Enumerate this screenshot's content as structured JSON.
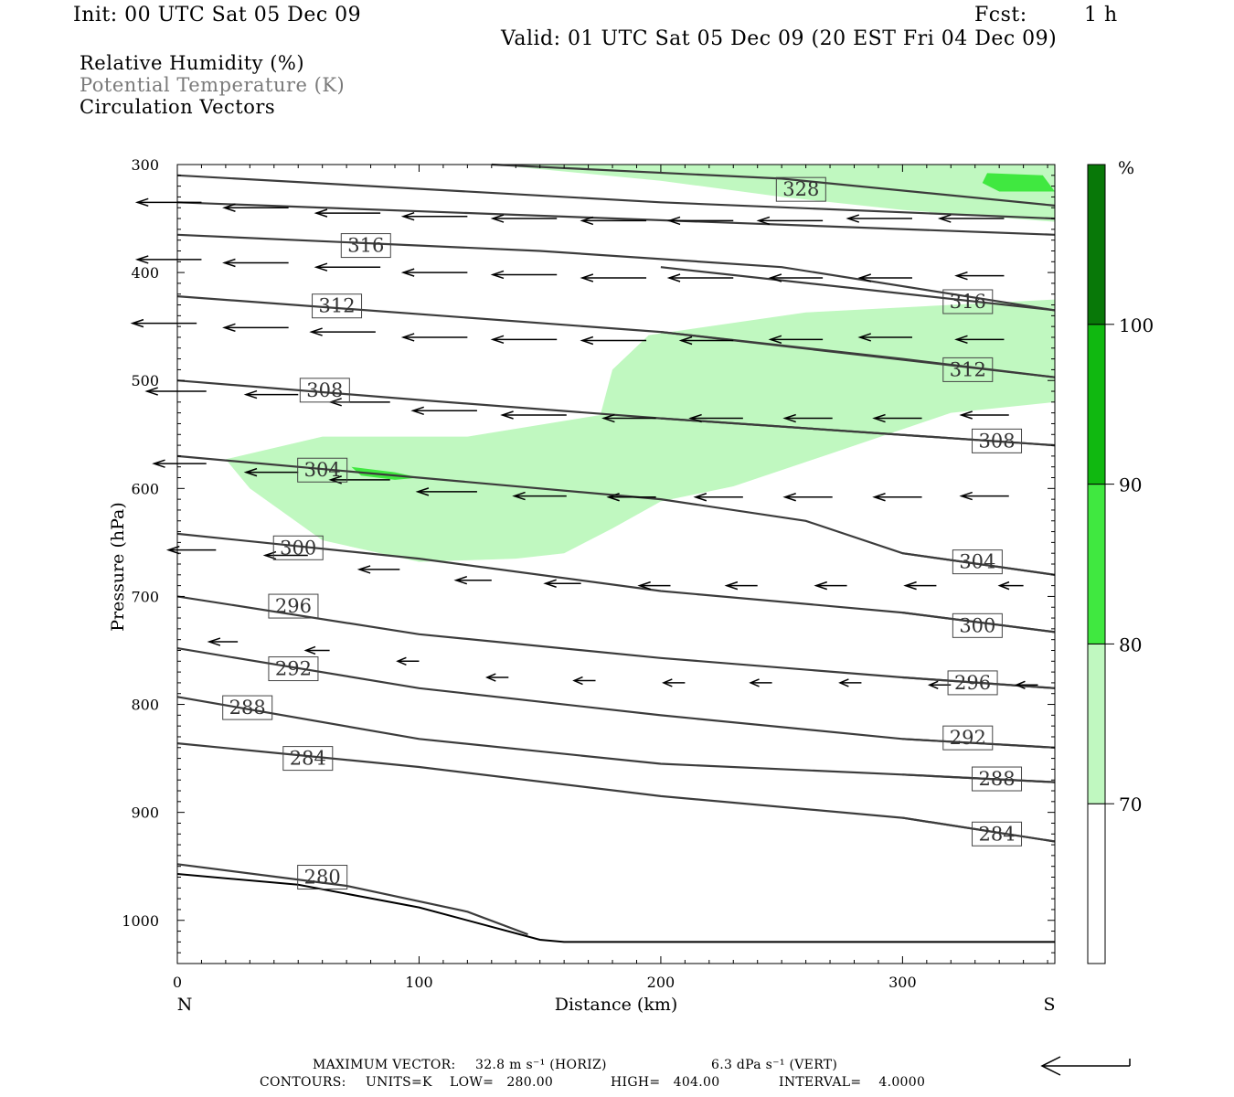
{
  "header": {
    "init": "Init: 00 UTC Sat 05 Dec 09",
    "fcst_label": "Fcst:",
    "fcst_value": "1 h",
    "valid": "Valid: 01 UTC Sat 05 Dec 09 (20 EST Fri 04 Dec 09)"
  },
  "titles": {
    "line1": "Relative Humidity (%)",
    "line2": "Potential Temperature (K)",
    "line3": "Circulation Vectors"
  },
  "footer": {
    "max_vector_label": "MAXIMUM VECTOR:",
    "max_vector_horiz": "32.8 m s⁻¹ (HORIZ)",
    "max_vector_vert": "6.3 dPa s⁻¹ (VERT)",
    "contours_label": "CONTOURS:",
    "units": "UNITS=K",
    "low": "LOW=   280.00",
    "high": "HIGH=   404.00",
    "interval": "INTERVAL=    4.0000"
  },
  "colors": {
    "rh_70_80": "#c0f8c0",
    "rh_80_90": "#40e840",
    "rh_90_100": "#10b810",
    "rh_100": "#087808",
    "theta_line": "#3c3c3c",
    "axis": "#000000"
  },
  "chart_data": {
    "type": "contour",
    "xlabel": "Distance (km)",
    "ylabel": "Pressure (hPa)",
    "xlim": [
      0,
      363
    ],
    "ylim": [
      1040,
      300
    ],
    "x_ticks": [
      "0",
      "100",
      "200",
      "300"
    ],
    "x_tick_values": [
      0,
      100,
      200,
      300
    ],
    "y_ticks": [
      "300",
      "400",
      "500",
      "600",
      "700",
      "800",
      "900",
      "1000"
    ],
    "y_tick_values": [
      300,
      400,
      500,
      600,
      700,
      800,
      900,
      1000
    ],
    "x_end_labels": {
      "left": "N",
      "right": "S"
    },
    "colorbar": {
      "unit": "%",
      "levels": [
        "70",
        "80",
        "90",
        "100"
      ],
      "level_values": [
        70,
        80,
        90,
        100
      ]
    },
    "theta_contours": [
      {
        "label": "328",
        "points": [
          [
            130,
            300
          ],
          [
            250,
            313
          ],
          [
            363,
            338
          ]
        ],
        "label_at": [
          258,
          323
        ]
      },
      {
        "label": "",
        "points": [
          [
            0,
            310
          ],
          [
            200,
            335
          ],
          [
            363,
            350
          ]
        ],
        "label_at": null
      },
      {
        "label": "316",
        "points": [
          [
            0,
            365
          ],
          [
            150,
            380
          ],
          [
            250,
            395
          ],
          [
            363,
            435
          ]
        ],
        "label_at": [
          78,
          375
        ]
      },
      {
        "label": "316",
        "points": [
          [
            200,
            395
          ],
          [
            363,
            435
          ]
        ],
        "label_at": [
          327,
          427
        ]
      },
      {
        "label": "",
        "points": [
          [
            0,
            335
          ],
          [
            363,
            365
          ]
        ],
        "label_at": null
      },
      {
        "label": "312",
        "points": [
          [
            0,
            422
          ],
          [
            200,
            455
          ],
          [
            300,
            480
          ],
          [
            363,
            497
          ]
        ],
        "label_at": [
          66,
          431
        ]
      },
      {
        "label": "312",
        "points": [
          [
            200,
            455
          ],
          [
            363,
            497
          ]
        ],
        "label_at": [
          327,
          490
        ]
      },
      {
        "label": "308",
        "points": [
          [
            0,
            500
          ],
          [
            100,
            518
          ],
          [
            200,
            535
          ],
          [
            363,
            560
          ]
        ],
        "label_at": [
          61,
          509
        ]
      },
      {
        "label": "308",
        "points": [
          [
            200,
            535
          ],
          [
            363,
            560
          ]
        ],
        "label_at": [
          339,
          556
        ]
      },
      {
        "label": "304",
        "points": [
          [
            0,
            570
          ],
          [
            100,
            590
          ],
          [
            200,
            610
          ],
          [
            260,
            630
          ],
          [
            300,
            660
          ],
          [
            363,
            680
          ]
        ],
        "label_at": [
          60,
          583
        ]
      },
      {
        "label": "304",
        "points": [
          [
            300,
            660
          ],
          [
            363,
            680
          ]
        ],
        "label_at": [
          331,
          668
        ]
      },
      {
        "label": "300",
        "points": [
          [
            0,
            642
          ],
          [
            100,
            665
          ],
          [
            200,
            695
          ],
          [
            300,
            715
          ],
          [
            363,
            733
          ]
        ],
        "label_at": [
          50,
          655
        ]
      },
      {
        "label": "300",
        "points": [
          [
            300,
            715
          ],
          [
            363,
            733
          ]
        ],
        "label_at": [
          331,
          727
        ]
      },
      {
        "label": "296",
        "points": [
          [
            0,
            700
          ],
          [
            100,
            735
          ],
          [
            200,
            757
          ],
          [
            300,
            775
          ],
          [
            363,
            785
          ]
        ],
        "label_at": [
          48,
          709
        ]
      },
      {
        "label": "296",
        "points": [
          [
            300,
            775
          ],
          [
            363,
            785
          ]
        ],
        "label_at": [
          329,
          780
        ]
      },
      {
        "label": "292",
        "points": [
          [
            0,
            748
          ],
          [
            100,
            785
          ],
          [
            200,
            810
          ],
          [
            300,
            832
          ],
          [
            363,
            840
          ]
        ],
        "label_at": [
          48,
          767
        ]
      },
      {
        "label": "292",
        "points": [
          [
            300,
            832
          ],
          [
            363,
            840
          ]
        ],
        "label_at": [
          327,
          831
        ]
      },
      {
        "label": "288",
        "points": [
          [
            0,
            793
          ],
          [
            100,
            832
          ],
          [
            200,
            855
          ],
          [
            300,
            865
          ],
          [
            363,
            872
          ]
        ],
        "label_at": [
          29,
          803
        ]
      },
      {
        "label": "288",
        "points": [
          [
            300,
            865
          ],
          [
            363,
            872
          ]
        ],
        "label_at": [
          339,
          869
        ]
      },
      {
        "label": "284",
        "points": [
          [
            0,
            836
          ],
          [
            100,
            858
          ],
          [
            200,
            885
          ],
          [
            300,
            905
          ],
          [
            363,
            927
          ]
        ],
        "label_at": [
          54,
          850
        ]
      },
      {
        "label": "284",
        "points": [
          [
            300,
            905
          ],
          [
            363,
            927
          ]
        ],
        "label_at": [
          339,
          920
        ]
      },
      {
        "label": "280",
        "points": [
          [
            0,
            948
          ],
          [
            70,
            968
          ],
          [
            120,
            992
          ],
          [
            145,
            1013
          ]
        ],
        "label_at": [
          60,
          960
        ]
      }
    ],
    "terrain": [
      [
        0,
        957
      ],
      [
        50,
        967
      ],
      [
        100,
        988
      ],
      [
        150,
        1018
      ],
      [
        160,
        1020
      ],
      [
        363,
        1020
      ]
    ],
    "rh_regions": [
      {
        "level": "70-80",
        "points": [
          [
            130,
            300
          ],
          [
            363,
            300
          ],
          [
            363,
            353
          ],
          [
            300,
            342
          ],
          [
            250,
            330
          ],
          [
            200,
            315
          ]
        ]
      },
      {
        "level": "70-80",
        "points": [
          [
            20,
            573
          ],
          [
            60,
            552
          ],
          [
            120,
            552
          ],
          [
            175,
            532
          ],
          [
            180,
            490
          ],
          [
            195,
            458
          ],
          [
            260,
            437
          ],
          [
            363,
            425
          ],
          [
            363,
            520
          ],
          [
            320,
            530
          ],
          [
            270,
            568
          ],
          [
            230,
            598
          ],
          [
            200,
            612
          ],
          [
            180,
            637
          ],
          [
            160,
            660
          ],
          [
            140,
            665
          ],
          [
            100,
            668
          ],
          [
            60,
            648
          ],
          [
            30,
            600
          ]
        ]
      },
      {
        "level": "80-90",
        "points": [
          [
            335,
            308
          ],
          [
            358,
            310
          ],
          [
            363,
            325
          ],
          [
            340,
            325
          ],
          [
            333,
            317
          ]
        ]
      },
      {
        "level": "80-90",
        "points": [
          [
            72,
            580
          ],
          [
            90,
            585
          ],
          [
            100,
            590
          ],
          [
            90,
            592
          ],
          [
            76,
            588
          ]
        ]
      }
    ],
    "vectors": [
      {
        "x": 10,
        "p": 335,
        "u": -27,
        "w": 0
      },
      {
        "x": 46,
        "p": 340,
        "u": -27,
        "w": 0
      },
      {
        "x": 84,
        "p": 345,
        "u": -27,
        "w": 0
      },
      {
        "x": 120,
        "p": 348,
        "u": -27,
        "w": 0
      },
      {
        "x": 157,
        "p": 350,
        "u": -27,
        "w": 0
      },
      {
        "x": 194,
        "p": 352,
        "u": -27,
        "w": 0
      },
      {
        "x": 230,
        "p": 352,
        "u": -27,
        "w": 0
      },
      {
        "x": 267,
        "p": 352,
        "u": -27,
        "w": 0
      },
      {
        "x": 304,
        "p": 350,
        "u": -27,
        "w": 0
      },
      {
        "x": 342,
        "p": 350,
        "u": -27,
        "w": 0
      },
      {
        "x": 10,
        "p": 388,
        "u": -27,
        "w": 0
      },
      {
        "x": 46,
        "p": 391,
        "u": -27,
        "w": 0
      },
      {
        "x": 84,
        "p": 395,
        "u": -27,
        "w": 0
      },
      {
        "x": 120,
        "p": 400,
        "u": -27,
        "w": 0
      },
      {
        "x": 157,
        "p": 402,
        "u": -27,
        "w": 0
      },
      {
        "x": 194,
        "p": 405,
        "u": -27,
        "w": 0
      },
      {
        "x": 230,
        "p": 405,
        "u": -27,
        "w": 0
      },
      {
        "x": 267,
        "p": 405,
        "u": -22,
        "w": 0
      },
      {
        "x": 304,
        "p": 405,
        "u": -22,
        "w": 0
      },
      {
        "x": 342,
        "p": 403,
        "u": -20,
        "w": 0
      },
      {
        "x": 8,
        "p": 447,
        "u": -27,
        "w": 0
      },
      {
        "x": 46,
        "p": 451,
        "u": -27,
        "w": 0
      },
      {
        "x": 82,
        "p": 455,
        "u": -27,
        "w": 0
      },
      {
        "x": 120,
        "p": 460,
        "u": -27,
        "w": 0
      },
      {
        "x": 157,
        "p": 462,
        "u": -27,
        "w": 0
      },
      {
        "x": 194,
        "p": 463,
        "u": -27,
        "w": 0
      },
      {
        "x": 230,
        "p": 463,
        "u": -22,
        "w": 0
      },
      {
        "x": 267,
        "p": 462,
        "u": -22,
        "w": 0
      },
      {
        "x": 304,
        "p": 460,
        "u": -22,
        "w": 0
      },
      {
        "x": 342,
        "p": 462,
        "u": -20,
        "w": 0
      },
      {
        "x": 12,
        "p": 510,
        "u": -25,
        "w": 0
      },
      {
        "x": 50,
        "p": 513,
        "u": -22,
        "w": 0
      },
      {
        "x": 88,
        "p": 520,
        "u": -25,
        "w": 0
      },
      {
        "x": 124,
        "p": 528,
        "u": -27,
        "w": 0
      },
      {
        "x": 161,
        "p": 532,
        "u": -27,
        "w": 0
      },
      {
        "x": 198,
        "p": 535,
        "u": -22,
        "w": 0
      },
      {
        "x": 234,
        "p": 535,
        "u": -22,
        "w": 0
      },
      {
        "x": 271,
        "p": 535,
        "u": -20,
        "w": 0
      },
      {
        "x": 308,
        "p": 535,
        "u": -20,
        "w": 0
      },
      {
        "x": 344,
        "p": 532,
        "u": -20,
        "w": 0
      },
      {
        "x": 12,
        "p": 577,
        "u": -22,
        "w": 0
      },
      {
        "x": 50,
        "p": 585,
        "u": -22,
        "w": 0
      },
      {
        "x": 88,
        "p": 592,
        "u": -25,
        "w": 0
      },
      {
        "x": 124,
        "p": 603,
        "u": -25,
        "w": 0
      },
      {
        "x": 161,
        "p": 607,
        "u": -22,
        "w": 0
      },
      {
        "x": 198,
        "p": 608,
        "u": -20,
        "w": 0
      },
      {
        "x": 234,
        "p": 608,
        "u": -20,
        "w": 0
      },
      {
        "x": 271,
        "p": 608,
        "u": -20,
        "w": 0
      },
      {
        "x": 308,
        "p": 608,
        "u": -20,
        "w": 0
      },
      {
        "x": 344,
        "p": 607,
        "u": -20,
        "w": 0
      },
      {
        "x": 16,
        "p": 657,
        "u": -20,
        "w": 0
      },
      {
        "x": 54,
        "p": 662,
        "u": -18,
        "w": 0
      },
      {
        "x": 92,
        "p": 675,
        "u": -17,
        "w": 0
      },
      {
        "x": 130,
        "p": 685,
        "u": -15,
        "w": 0
      },
      {
        "x": 167,
        "p": 688,
        "u": -15,
        "w": 0
      },
      {
        "x": 204,
        "p": 690,
        "u": -13,
        "w": 0
      },
      {
        "x": 240,
        "p": 690,
        "u": -13,
        "w": 0
      },
      {
        "x": 277,
        "p": 690,
        "u": -13,
        "w": 0
      },
      {
        "x": 314,
        "p": 690,
        "u": -13,
        "w": 0
      },
      {
        "x": 350,
        "p": 690,
        "u": -10,
        "w": 0
      },
      {
        "x": 25,
        "p": 742,
        "u": -12,
        "w": 0
      },
      {
        "x": 63,
        "p": 750,
        "u": -10,
        "w": 0
      },
      {
        "x": 100,
        "p": 760,
        "u": -9,
        "w": 0
      },
      {
        "x": 137,
        "p": 775,
        "u": -9,
        "w": 0
      },
      {
        "x": 173,
        "p": 778,
        "u": -9,
        "w": 0
      },
      {
        "x": 210,
        "p": 780,
        "u": -9,
        "w": 0
      },
      {
        "x": 246,
        "p": 780,
        "u": -9,
        "w": 0
      },
      {
        "x": 283,
        "p": 780,
        "u": -9,
        "w": 0
      },
      {
        "x": 320,
        "p": 782,
        "u": -9,
        "w": 0
      },
      {
        "x": 356,
        "p": 782,
        "u": -9,
        "w": 0
      }
    ]
  }
}
